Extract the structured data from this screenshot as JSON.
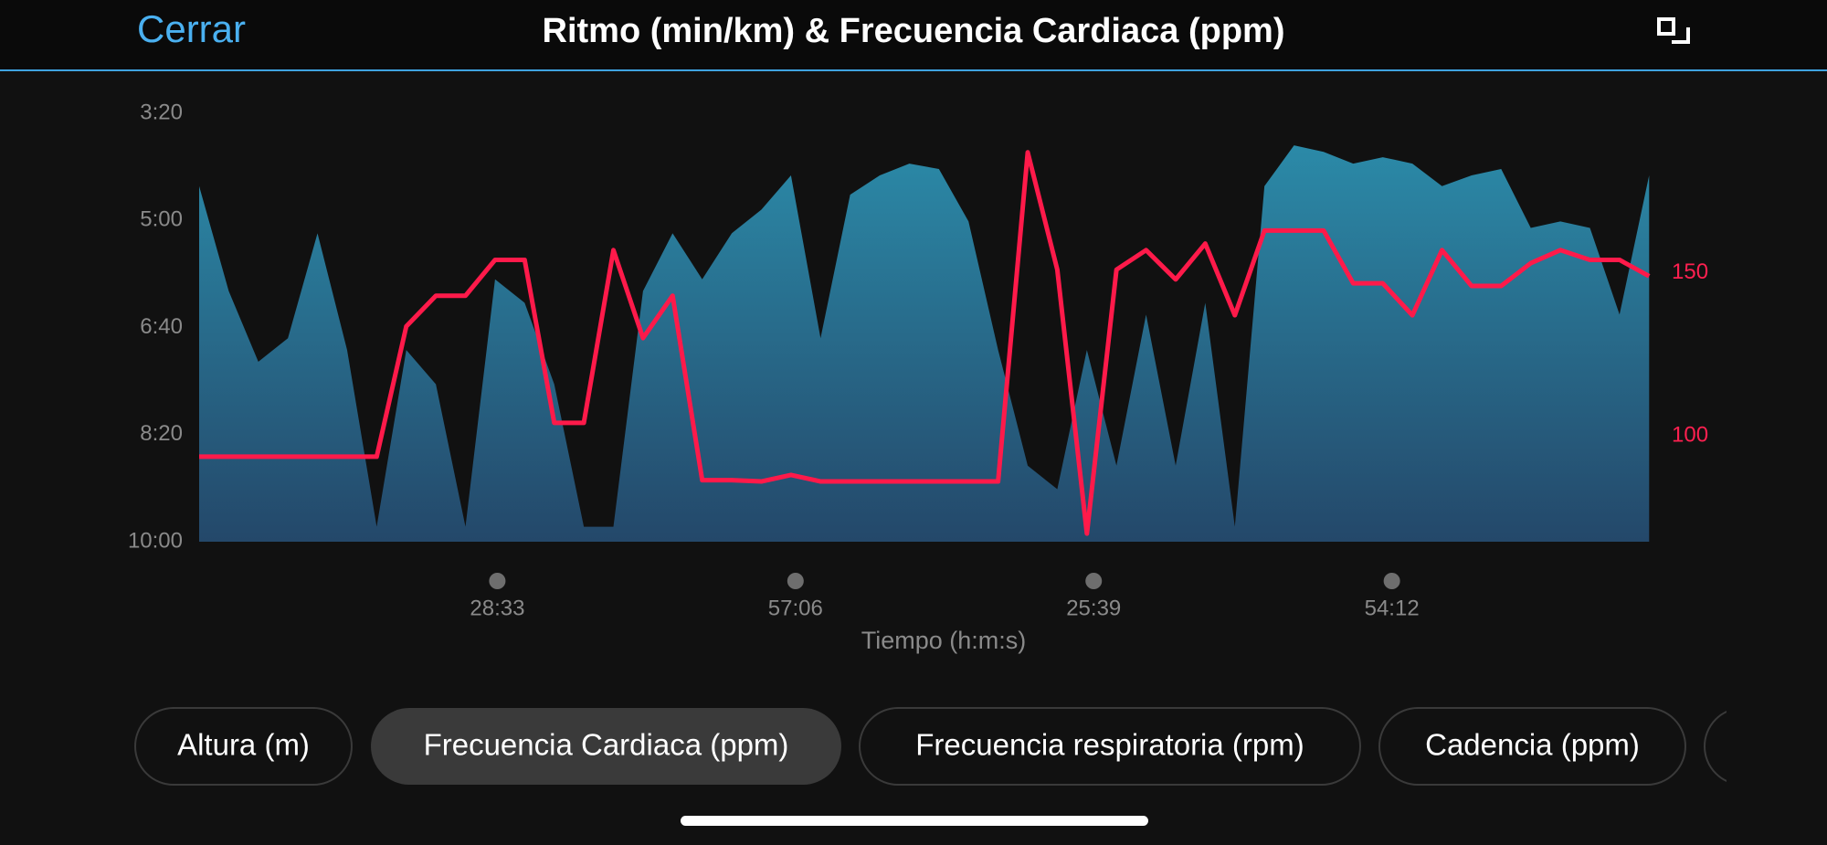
{
  "header": {
    "close": "Cerrar"
  },
  "chart_data": {
    "type": "combo",
    "title": "Ritmo (min/km) & Frecuencia Cardiaca (ppm)",
    "x_label": "Tiempo (h:m:s)",
    "x": [
      0,
      170,
      340,
      510,
      680,
      850,
      1020,
      1190,
      1360,
      1530,
      1700,
      1870,
      2040,
      2210,
      2380,
      2550,
      2720,
      2890,
      3060,
      3230,
      3400,
      3570,
      3740,
      3910,
      4080,
      4250,
      4420,
      4590,
      4760,
      4930,
      5100,
      5270,
      5440,
      5610,
      5780,
      5950,
      6120,
      6290,
      6460,
      6630,
      6800,
      6970,
      7140,
      7310,
      7480,
      7650,
      7820,
      7990,
      8160,
      8330
    ],
    "xlim": [
      0,
      8360
    ],
    "xticks": [
      {
        "value": 1713,
        "label": "28:33"
      },
      {
        "value": 3426,
        "label": "57:06"
      },
      {
        "value": 5139,
        "label": "25:39"
      },
      {
        "value": 6852,
        "label": "54:12"
      }
    ],
    "ylim": [
      600,
      200
    ],
    "yticks": [
      {
        "value": 200,
        "label": "3:20"
      },
      {
        "value": 300,
        "label": "5:00"
      },
      {
        "value": 400,
        "label": "6:40"
      },
      {
        "value": 500,
        "label": "8:20"
      },
      {
        "value": 600,
        "label": "10:00"
      }
    ],
    "y2lim": [
      67.5,
      199
    ],
    "y2ticks": [
      150,
      100
    ],
    "series": [
      {
        "type": "area",
        "color": "#2a88a8",
        "values": [
          268,
          366,
          432,
          410,
          312,
          421,
          586,
          421,
          453,
          586,
          355,
          377,
          453,
          586,
          586,
          366,
          312,
          355,
          312,
          290,
          258,
          410,
          276,
          258,
          247,
          252,
          301,
          421,
          529,
          551,
          421,
          529,
          388,
          529,
          377,
          586,
          268,
          230,
          236,
          247,
          241,
          247,
          268,
          258,
          252,
          307,
          301,
          307,
          388,
          258
        ]
      },
      {
        "type": "line",
        "axis": "y2",
        "color": "#ff1a4a",
        "values": [
          93.6,
          93.6,
          93.6,
          93.6,
          93.6,
          93.6,
          93.6,
          133.6,
          143,
          143,
          154,
          154,
          104,
          104,
          157,
          130,
          143,
          86.4,
          86.4,
          86,
          88,
          86,
          86,
          86,
          86,
          86,
          86,
          86,
          187,
          151,
          70,
          151,
          157,
          148,
          159,
          137,
          163,
          163,
          163,
          146.8,
          146.8,
          137,
          157,
          146,
          146,
          153,
          157,
          154,
          154,
          149
        ]
      }
    ]
  },
  "tabs": [
    "Altura (m)",
    "Frecuencia Cardiaca (ppm)",
    "Frecuencia respiratoria (rpm)",
    "Cadencia (ppm)"
  ],
  "selected_tab": 1
}
